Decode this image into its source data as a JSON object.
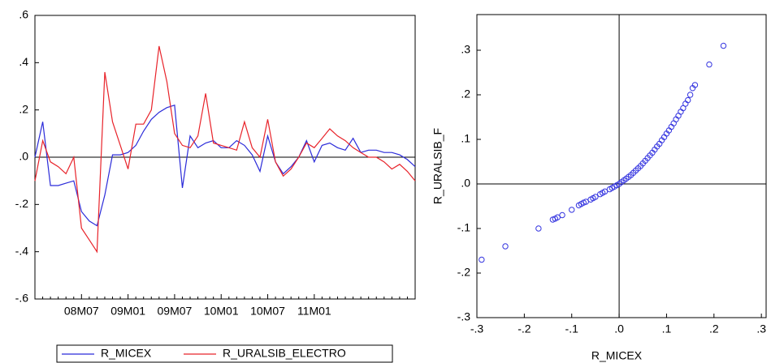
{
  "chart_data": [
    {
      "type": "line",
      "categories": [
        null,
        null,
        null,
        null,
        null,
        null,
        "08M07",
        null,
        null,
        null,
        null,
        null,
        "09M01",
        null,
        null,
        null,
        null,
        null,
        "09M07",
        null,
        null,
        null,
        null,
        null,
        "10M01",
        null,
        null,
        null,
        null,
        null,
        "10M07",
        null,
        null,
        null,
        null,
        null,
        "11M01",
        null,
        null,
        null,
        null,
        null,
        null,
        null,
        null,
        null,
        null,
        null,
        null,
        null
      ],
      "series": [
        {
          "name": "R_MICEX",
          "color": "#2b2bd9",
          "values": [
            0.0,
            0.15,
            -0.12,
            -0.12,
            -0.11,
            -0.1,
            -0.23,
            -0.27,
            -0.29,
            -0.16,
            0.01,
            0.01,
            0.02,
            0.05,
            0.11,
            0.16,
            0.19,
            0.21,
            0.22,
            -0.13,
            0.09,
            0.04,
            0.06,
            0.07,
            0.04,
            0.04,
            0.07,
            0.05,
            0.01,
            -0.06,
            0.09,
            -0.02,
            -0.07,
            -0.04,
            0.0,
            0.07,
            -0.02,
            0.05,
            0.06,
            0.04,
            0.03,
            0.08,
            0.02,
            0.03,
            0.03,
            0.02,
            0.02,
            0.01,
            -0.01,
            -0.04
          ]
        },
        {
          "name": "R_URALSIB_ELECTRO",
          "color": "#e8232a",
          "values": [
            -0.1,
            0.07,
            -0.02,
            -0.04,
            -0.07,
            0.0,
            -0.3,
            -0.35,
            -0.4,
            0.36,
            0.15,
            0.05,
            -0.05,
            0.14,
            0.14,
            0.2,
            0.47,
            0.32,
            0.1,
            0.05,
            0.04,
            0.09,
            0.27,
            0.06,
            0.05,
            0.04,
            0.03,
            0.15,
            0.04,
            0.0,
            0.16,
            -0.02,
            -0.08,
            -0.05,
            0.0,
            0.06,
            0.04,
            0.08,
            0.12,
            0.09,
            0.07,
            0.04,
            0.02,
            0.0,
            0.0,
            -0.02,
            -0.05,
            -0.03,
            -0.06,
            -0.1
          ]
        }
      ],
      "ylim": [
        -0.6,
        0.6
      ],
      "yticks": [
        {
          "value": 0.6,
          "label": ".6"
        },
        {
          "value": 0.4,
          "label": ".4"
        },
        {
          "value": 0.2,
          "label": ".2"
        },
        {
          "value": 0,
          "label": ".0"
        },
        {
          "value": -0.2,
          "label": "-.2"
        },
        {
          "value": -0.4,
          "label": "-.4"
        },
        {
          "value": -0.6,
          "label": "-.6"
        }
      ],
      "legend": "bottom"
    },
    {
      "type": "scatter",
      "xlabel": "R_MICEX",
      "ylabel": "R_URALSIB_F",
      "color": "#3535e0",
      "x": [
        -0.29,
        -0.24,
        -0.17,
        -0.14,
        -0.135,
        -0.13,
        -0.12,
        -0.1,
        -0.085,
        -0.08,
        -0.075,
        -0.07,
        -0.06,
        -0.055,
        -0.05,
        -0.04,
        -0.035,
        -0.03,
        -0.02,
        -0.015,
        -0.01,
        -0.005,
        0.0,
        0.005,
        0.01,
        0.015,
        0.02,
        0.025,
        0.03,
        0.035,
        0.04,
        0.045,
        0.05,
        0.055,
        0.06,
        0.065,
        0.07,
        0.075,
        0.08,
        0.085,
        0.09,
        0.095,
        0.1,
        0.105,
        0.11,
        0.115,
        0.12,
        0.125,
        0.13,
        0.135,
        0.14,
        0.145,
        0.15,
        0.155,
        0.16,
        0.19,
        0.22
      ],
      "y": [
        -0.17,
        -0.14,
        -0.1,
        -0.08,
        -0.078,
        -0.075,
        -0.07,
        -0.058,
        -0.048,
        -0.045,
        -0.042,
        -0.04,
        -0.035,
        -0.032,
        -0.029,
        -0.023,
        -0.02,
        -0.017,
        -0.012,
        -0.009,
        -0.006,
        -0.003,
        0.0,
        0.004,
        0.008,
        0.012,
        0.016,
        0.02,
        0.025,
        0.03,
        0.035,
        0.04,
        0.046,
        0.052,
        0.058,
        0.064,
        0.07,
        0.077,
        0.084,
        0.09,
        0.098,
        0.105,
        0.113,
        0.12,
        0.128,
        0.136,
        0.145,
        0.153,
        0.162,
        0.17,
        0.18,
        0.188,
        0.2,
        0.215,
        0.222,
        0.268,
        0.31
      ],
      "xlim": [
        -0.3,
        0.31
      ],
      "ylim": [
        -0.3,
        0.38
      ],
      "xticks": [
        {
          "value": -0.3,
          "label": "-.3"
        },
        {
          "value": -0.2,
          "label": "-.2"
        },
        {
          "value": -0.1,
          "label": "-.1"
        },
        {
          "value": 0,
          "label": ".0"
        },
        {
          "value": 0.1,
          "label": ".1"
        },
        {
          "value": 0.2,
          "label": ".2"
        },
        {
          "value": 0.3,
          "label": ".3"
        }
      ],
      "yticks": [
        {
          "value": 0.3,
          "label": ".3"
        },
        {
          "value": 0.2,
          "label": ".2"
        },
        {
          "value": 0.1,
          "label": ".1"
        },
        {
          "value": 0,
          "label": ".0"
        },
        {
          "value": -0.1,
          "label": "-.1"
        },
        {
          "value": -0.2,
          "label": "-.2"
        },
        {
          "value": -0.3,
          "label": "-.3"
        }
      ]
    }
  ]
}
